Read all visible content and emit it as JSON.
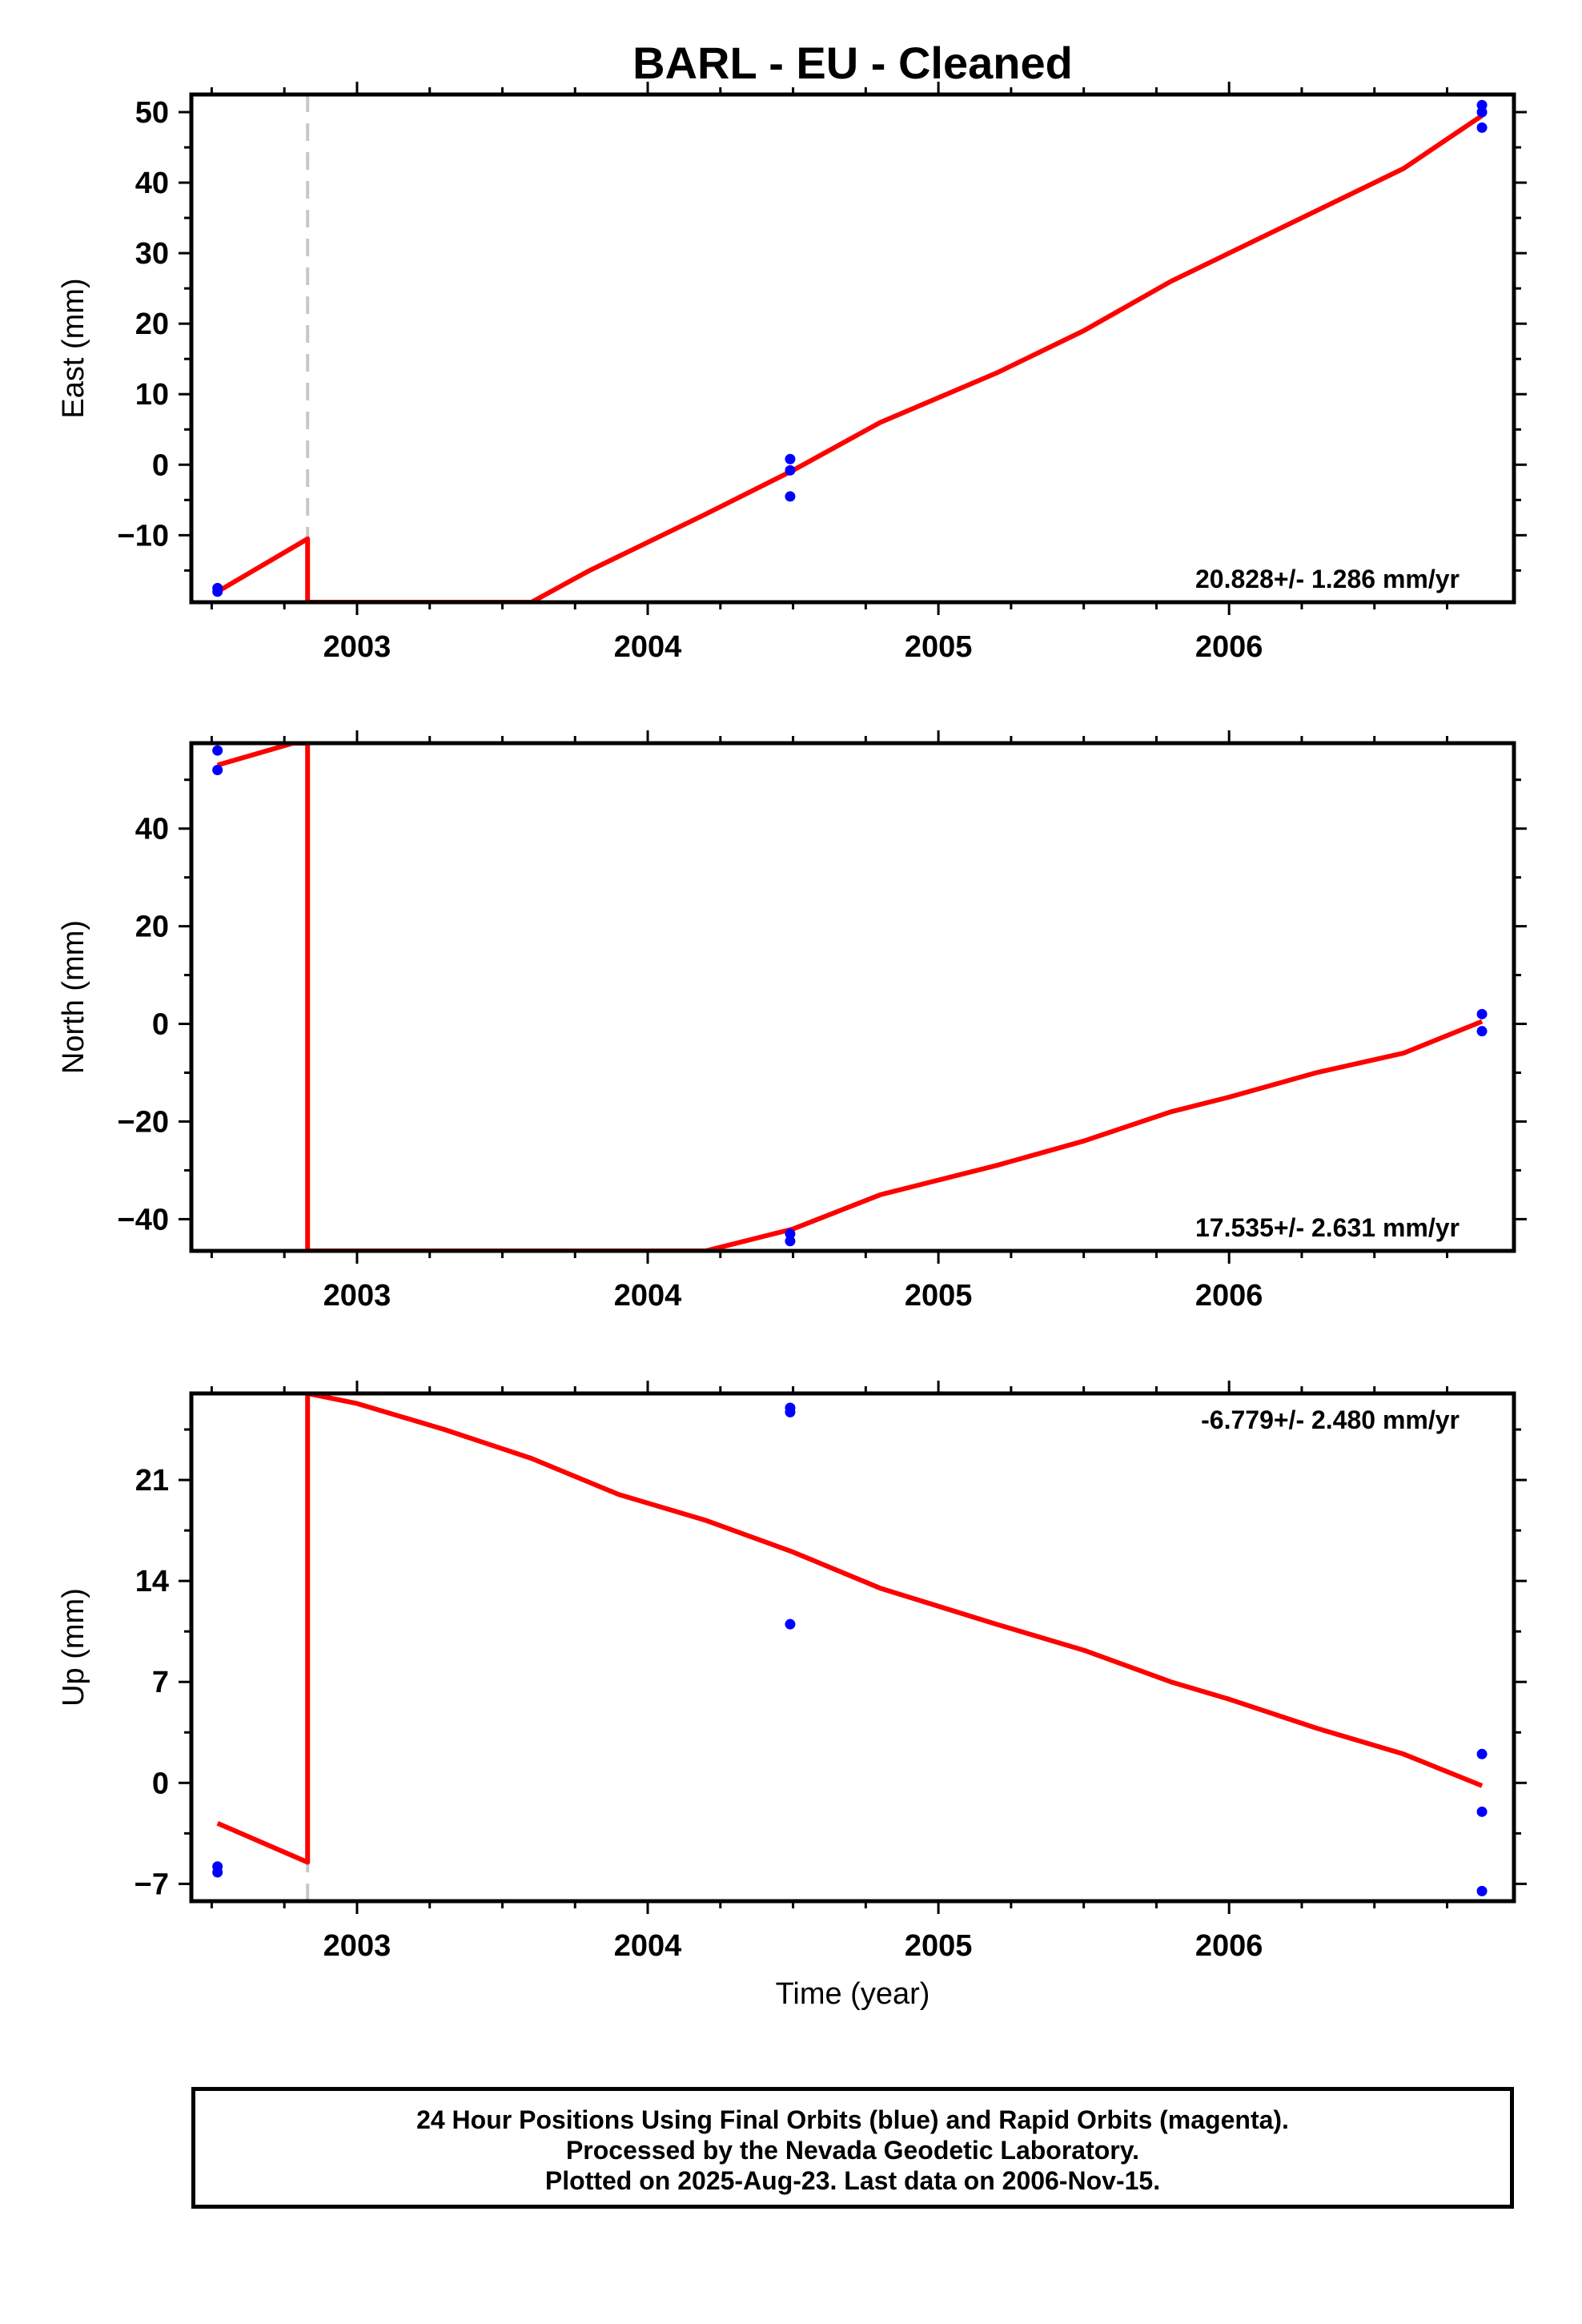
{
  "title": "BARL  - EU - Cleaned",
  "xlabel": "Time (year)",
  "colors": {
    "fit": "#ff0000",
    "final_orbits": "#0000ff",
    "offset_line": "#c8c8c8"
  },
  "chart_data": [
    {
      "type": "scatter",
      "name": "east",
      "ylabel": "East (mm)",
      "xlim": [
        2002.43,
        2006.98
      ],
      "ylim": [
        -19.5,
        52.5
      ],
      "yticks": [
        -10,
        0,
        10,
        20,
        30,
        40,
        50
      ],
      "xticks": [
        2003,
        2004,
        2005,
        2006
      ],
      "rate_text": "20.828+/- 1.286 mm/yr",
      "offsets": [
        2002.83
      ],
      "points": [
        [
          2002.52,
          -17.5
        ],
        [
          2002.52,
          -18.0
        ],
        [
          2004.49,
          0.8
        ],
        [
          2004.49,
          -0.8
        ],
        [
          2004.49,
          -4.5
        ],
        [
          2006.87,
          51.0
        ],
        [
          2006.87,
          50.0
        ],
        [
          2006.87,
          47.8
        ]
      ],
      "fit": [
        [
          2002.52,
          -18.0
        ],
        [
          2002.83,
          -10.5
        ],
        [
          2002.83,
          -19.5
        ],
        [
          2003.6,
          -19.5
        ],
        [
          2003.8,
          -15.0
        ],
        [
          2004.0,
          -11.0
        ],
        [
          2004.2,
          -7.0
        ],
        [
          2004.5,
          -0.8
        ],
        [
          2004.8,
          6.0
        ],
        [
          2005.2,
          13.0
        ],
        [
          2005.5,
          19.0
        ],
        [
          2005.8,
          26.0
        ],
        [
          2006.0,
          30.0
        ],
        [
          2006.3,
          36.0
        ],
        [
          2006.6,
          42.0
        ],
        [
          2006.87,
          49.5
        ]
      ]
    },
    {
      "type": "scatter",
      "name": "north",
      "ylabel": "North (mm)",
      "xlim": [
        2002.43,
        2006.98
      ],
      "ylim": [
        -46.5,
        57.5
      ],
      "yticks": [
        -40,
        -20,
        0,
        20,
        40
      ],
      "xticks": [
        2003,
        2004,
        2005,
        2006
      ],
      "rate_text": "17.535+/- 2.631 mm/yr",
      "offsets": [
        2002.83
      ],
      "points": [
        [
          2002.52,
          56.0
        ],
        [
          2002.52,
          52.0
        ],
        [
          2004.49,
          -43.0
        ],
        [
          2004.49,
          -44.5
        ],
        [
          2006.87,
          2.0
        ],
        [
          2006.87,
          -1.5
        ]
      ],
      "fit": [
        [
          2002.52,
          53.0
        ],
        [
          2002.78,
          57.5
        ],
        [
          2002.83,
          57.5
        ],
        [
          2002.83,
          -46.5
        ],
        [
          2004.2,
          -46.5
        ],
        [
          2004.5,
          -42.0
        ],
        [
          2004.8,
          -35.0
        ],
        [
          2005.2,
          -29.0
        ],
        [
          2005.5,
          -24.0
        ],
        [
          2005.8,
          -18.0
        ],
        [
          2006.0,
          -15.0
        ],
        [
          2006.3,
          -10.0
        ],
        [
          2006.6,
          -6.0
        ],
        [
          2006.87,
          0.5
        ]
      ]
    },
    {
      "type": "scatter",
      "name": "up",
      "ylabel": "Up (mm)",
      "xlim": [
        2002.43,
        2006.98
      ],
      "ylim": [
        -8.2,
        27.0
      ],
      "yticks": [
        -7,
        0,
        7,
        14,
        21
      ],
      "xticks": [
        2003,
        2004,
        2005,
        2006
      ],
      "rate_text": "-6.779+/- 2.480 mm/yr",
      "offsets": [
        2002.83
      ],
      "points": [
        [
          2002.52,
          -5.8
        ],
        [
          2002.52,
          -6.2
        ],
        [
          2004.49,
          26.0
        ],
        [
          2004.49,
          25.7
        ],
        [
          2004.49,
          11.0
        ],
        [
          2006.87,
          2.0
        ],
        [
          2006.87,
          -2.0
        ],
        [
          2006.87,
          -7.5
        ]
      ],
      "fit": [
        [
          2002.52,
          -2.8
        ],
        [
          2002.83,
          -5.5
        ],
        [
          2002.83,
          27.0
        ],
        [
          2003.0,
          26.3
        ],
        [
          2003.3,
          24.5
        ],
        [
          2003.6,
          22.5
        ],
        [
          2003.9,
          20.0
        ],
        [
          2004.2,
          18.2
        ],
        [
          2004.5,
          16.0
        ],
        [
          2004.8,
          13.5
        ],
        [
          2005.2,
          11.0
        ],
        [
          2005.5,
          9.2
        ],
        [
          2005.8,
          7.0
        ],
        [
          2006.0,
          5.8
        ],
        [
          2006.3,
          3.8
        ],
        [
          2006.6,
          2.0
        ],
        [
          2006.87,
          -0.2
        ]
      ]
    }
  ],
  "footer": {
    "line1": "24 Hour Positions Using Final Orbits (blue) and Rapid Orbits (magenta).",
    "line2": "Processed by the Nevada Geodetic Laboratory.",
    "line3": "Plotted on 2025-Aug-23. Last data on 2006-Nov-15."
  }
}
